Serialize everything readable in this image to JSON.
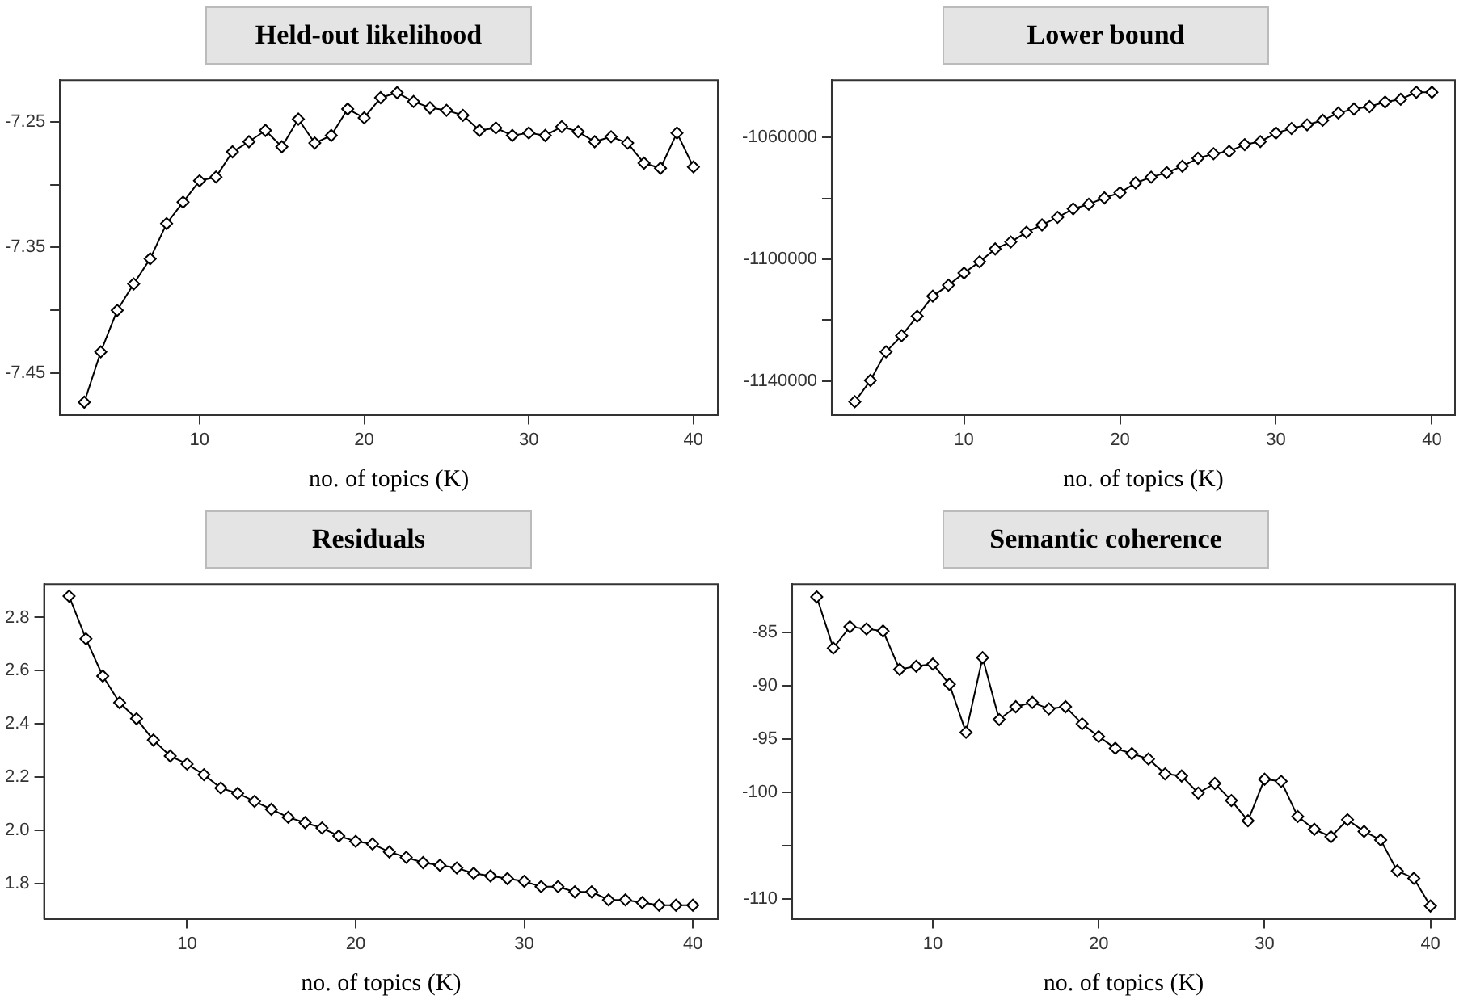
{
  "chart_data": [
    {
      "type": "line",
      "title": "Held-out likelihood",
      "xlabel": "no. of topics (K)",
      "marker": "diamond",
      "line_style": "solid",
      "color": "#000000",
      "x": [
        3,
        4,
        5,
        6,
        7,
        8,
        9,
        10,
        11,
        12,
        13,
        14,
        15,
        16,
        17,
        18,
        19,
        20,
        21,
        22,
        23,
        24,
        25,
        26,
        27,
        28,
        29,
        30,
        31,
        32,
        33,
        34,
        35,
        36,
        37,
        38,
        39,
        40
      ],
      "values": [
        -7.473,
        -7.433,
        -7.4,
        -7.379,
        -7.359,
        -7.331,
        -7.314,
        -7.297,
        -7.294,
        -7.274,
        -7.266,
        -7.257,
        -7.27,
        -7.248,
        -7.267,
        -7.261,
        -7.24,
        -7.247,
        -7.231,
        -7.227,
        -7.234,
        -7.239,
        -7.241,
        -7.245,
        -7.257,
        -7.255,
        -7.261,
        -7.259,
        -7.261,
        -7.254,
        -7.258,
        -7.266,
        -7.262,
        -7.267,
        -7.283,
        -7.287,
        -7.259,
        -7.286
      ],
      "xlim": [
        1.52,
        41.48
      ],
      "xticks": [
        10,
        20,
        30,
        40
      ],
      "ylim": [
        -7.483,
        -7.217
      ],
      "yticks": [
        -7.45,
        {
          "value": -7.4,
          "label": null
        },
        -7.35,
        {
          "value": -7.3,
          "label": null
        },
        -7.25
      ]
    },
    {
      "type": "line",
      "title": "Lower bound",
      "xlabel": "no. of topics (K)",
      "marker": "diamond",
      "line_style": "solid",
      "color": "#000000",
      "x": [
        3,
        4,
        5,
        6,
        7,
        8,
        9,
        10,
        11,
        12,
        13,
        14,
        15,
        16,
        17,
        18,
        19,
        20,
        21,
        22,
        23,
        24,
        25,
        26,
        27,
        28,
        29,
        30,
        31,
        32,
        33,
        34,
        35,
        36,
        37,
        38,
        39,
        40
      ],
      "values": [
        -1146800,
        -1139800,
        -1130400,
        -1125100,
        -1118700,
        -1112100,
        -1108500,
        -1104500,
        -1100800,
        -1096600,
        -1094300,
        -1091100,
        -1088700,
        -1086200,
        -1083400,
        -1081900,
        -1079800,
        -1078100,
        -1074900,
        -1073000,
        -1071500,
        -1069400,
        -1066800,
        -1065300,
        -1064500,
        -1062300,
        -1061300,
        -1058500,
        -1057000,
        -1055800,
        -1054300,
        -1051900,
        -1050600,
        -1049800,
        -1048300,
        -1047400,
        -1045100,
        -1045100
      ],
      "xlim": [
        1.52,
        41.48
      ],
      "xticks": [
        10,
        20,
        30,
        40
      ],
      "ylim": [
        -1151100,
        -1041100
      ],
      "yticks": [
        -1140000,
        {
          "value": -1120000,
          "label": null
        },
        -1100000,
        {
          "value": -1080000,
          "label": null
        },
        -1060000
      ]
    },
    {
      "type": "line",
      "title": "Residuals",
      "xlabel": "no. of topics (K)",
      "marker": "diamond",
      "line_style": "solid",
      "color": "#000000",
      "x": [
        3,
        4,
        5,
        6,
        7,
        8,
        9,
        10,
        11,
        12,
        13,
        14,
        15,
        16,
        17,
        18,
        19,
        20,
        21,
        22,
        23,
        24,
        25,
        26,
        27,
        28,
        29,
        30,
        31,
        32,
        33,
        34,
        35,
        36,
        37,
        38,
        39,
        40
      ],
      "values": [
        2.88,
        2.72,
        2.58,
        2.48,
        2.42,
        2.34,
        2.28,
        2.25,
        2.21,
        2.16,
        2.14,
        2.11,
        2.08,
        2.05,
        2.03,
        2.01,
        1.98,
        1.96,
        1.95,
        1.92,
        1.9,
        1.88,
        1.87,
        1.86,
        1.84,
        1.83,
        1.82,
        1.81,
        1.79,
        1.79,
        1.77,
        1.77,
        1.74,
        1.74,
        1.73,
        1.72,
        1.72,
        1.72
      ],
      "xlim": [
        1.52,
        41.48
      ],
      "xticks": [
        10,
        20,
        30,
        40
      ],
      "ylim": [
        1.669,
        2.925
      ],
      "yticks": [
        {
          "value": 1.8,
          "label": "1.8"
        },
        {
          "value": 2,
          "label": "2.0"
        },
        {
          "value": 2.2,
          "label": "2.2"
        },
        {
          "value": 2.4,
          "label": "2.4"
        },
        {
          "value": 2.6,
          "label": "2.6"
        },
        {
          "value": 2.8,
          "label": "2.8"
        }
      ]
    },
    {
      "type": "line",
      "title": "Semantic coherence",
      "xlabel": "no. of topics (K)",
      "marker": "diamond",
      "line_style": "solid",
      "color": "#000000",
      "x": [
        3,
        4,
        5,
        6,
        7,
        8,
        9,
        10,
        11,
        12,
        13,
        14,
        15,
        16,
        17,
        18,
        19,
        20,
        21,
        22,
        23,
        24,
        25,
        26,
        27,
        28,
        29,
        30,
        31,
        32,
        33,
        34,
        35,
        36,
        37,
        38,
        39,
        40
      ],
      "values": [
        -81.7,
        -86.5,
        -84.5,
        -84.7,
        -84.9,
        -88.5,
        -88.2,
        -88.0,
        -89.9,
        -94.4,
        -87.4,
        -93.2,
        -92.0,
        -91.6,
        -92.2,
        -92.0,
        -93.6,
        -94.8,
        -95.9,
        -96.4,
        -96.9,
        -98.3,
        -98.5,
        -100.1,
        -99.2,
        -100.8,
        -102.7,
        -98.8,
        -99.0,
        -102.3,
        -103.5,
        -104.2,
        -102.6,
        -103.7,
        -104.5,
        -107.4,
        -108.1,
        -110.7
      ],
      "xlim": [
        1.52,
        41.48
      ],
      "xticks": [
        10,
        20,
        30,
        40
      ],
      "ylim": [
        -111.9,
        -80.5
      ],
      "yticks": [
        -110,
        {
          "value": -105,
          "label": null
        },
        -100,
        -95,
        -90,
        -85
      ]
    }
  ]
}
